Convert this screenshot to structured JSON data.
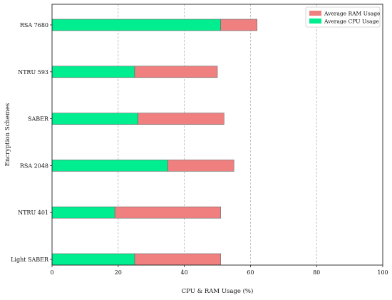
{
  "chart_data": {
    "type": "bar",
    "orientation": "horizontal",
    "stacked": true,
    "categories": [
      "RSA 7680",
      "NTRU 593",
      "SABER",
      "RSA 2048",
      "NTRU 401",
      "Light SABER"
    ],
    "series": [
      {
        "name": "Average CPU Usage",
        "color": "#00ee90",
        "values": [
          51,
          25,
          26,
          35,
          19,
          25
        ]
      },
      {
        "name": "Average RAM Usage",
        "color": "#f08080",
        "values": [
          11,
          25,
          26,
          20,
          32,
          26
        ]
      }
    ],
    "xlabel": "CPU & RAM Usage (%)",
    "ylabel": "Encryption Schemes",
    "xlim": [
      0,
      100
    ],
    "xticks": [
      "0",
      "20",
      "40",
      "60",
      "80",
      "100"
    ],
    "grid": "vertical dashed",
    "legend_position": "top-right",
    "legend_order": [
      "Average RAM Usage",
      "Average CPU Usage"
    ]
  }
}
